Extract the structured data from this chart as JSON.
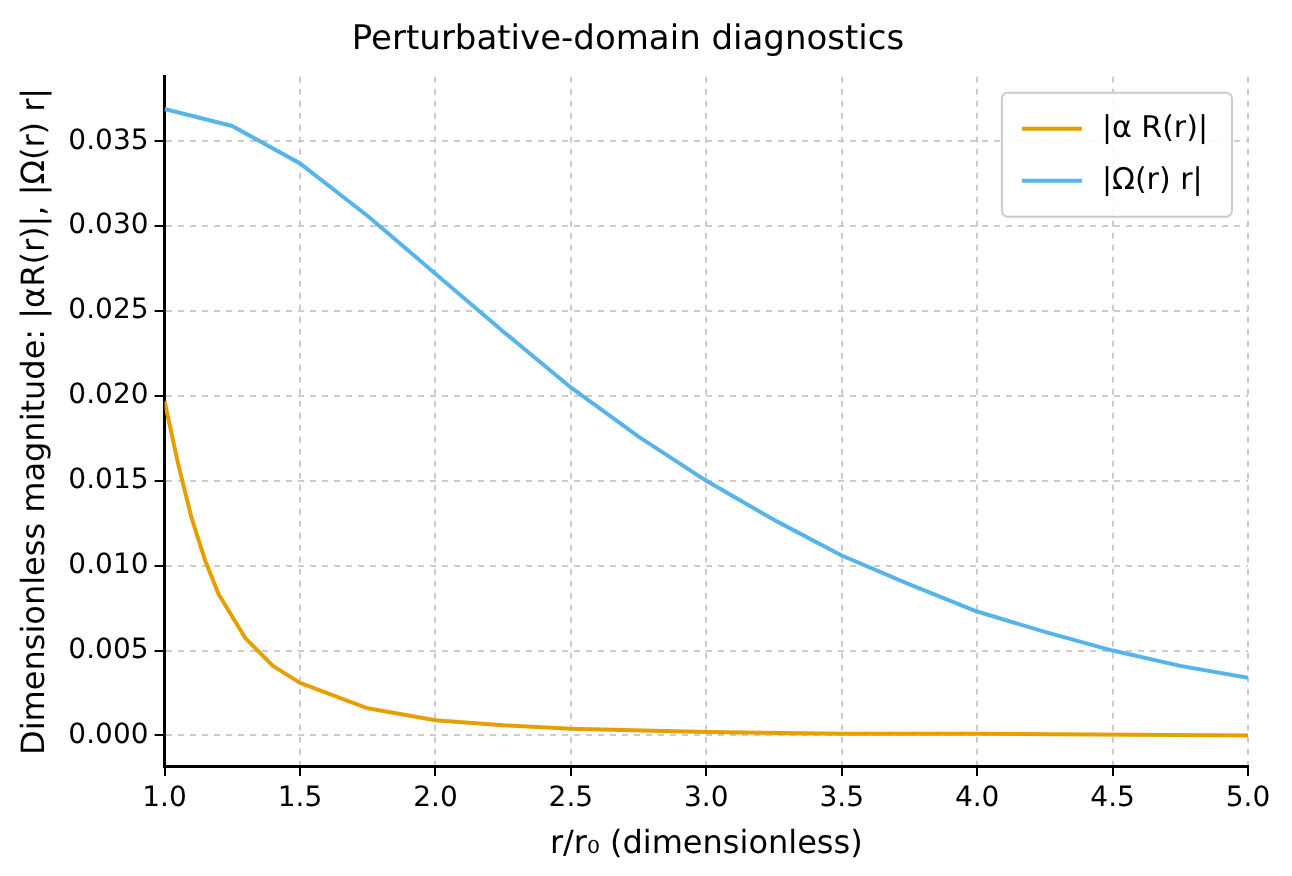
{
  "chart_data": {
    "type": "line",
    "title": "Perturbative-domain diagnostics",
    "xlabel": "r/r₀ (dimensionless)",
    "ylabel": "Dimensionless magnitude: |αR(r)|, |Ω(r) r|",
    "series": [
      {
        "name": "|α R(r)|",
        "color": "#e69f00",
        "x": [
          1.0,
          1.05,
          1.1,
          1.15,
          1.2,
          1.3,
          1.4,
          1.5,
          1.75,
          2.0,
          2.25,
          2.5,
          3.0,
          3.5,
          4.0,
          5.0
        ],
        "values": [
          0.0197,
          0.016,
          0.0128,
          0.0103,
          0.0083,
          0.0057,
          0.0041,
          0.0031,
          0.0016,
          0.0009,
          0.0006,
          0.0004,
          0.0002,
          0.0001,
          0.0001,
          0.0
        ]
      },
      {
        "name": "|Ω(r) r|",
        "color": "#56b4e9",
        "x": [
          1.0,
          1.25,
          1.5,
          1.75,
          2.0,
          2.25,
          2.5,
          2.75,
          3.0,
          3.25,
          3.5,
          3.75,
          4.0,
          4.25,
          4.5,
          4.75,
          5.0
        ],
        "values": [
          0.0369,
          0.0359,
          0.0337,
          0.0306,
          0.0272,
          0.0238,
          0.0205,
          0.0176,
          0.015,
          0.0127,
          0.0106,
          0.0089,
          0.0073,
          0.0061,
          0.005,
          0.0041,
          0.0034
        ]
      }
    ],
    "xlim": [
      1.0,
      5.0
    ],
    "xticks": [
      {
        "value": 1,
        "label": "1.0"
      },
      {
        "value": 1.5,
        "label": "1.5"
      },
      {
        "value": 2,
        "label": "2.0"
      },
      {
        "value": 2.5,
        "label": "2.5"
      },
      {
        "value": 3,
        "label": "3.0"
      },
      {
        "value": 3.5,
        "label": "3.5"
      },
      {
        "value": 4,
        "label": "4.0"
      },
      {
        "value": 4.5,
        "label": "4.5"
      },
      {
        "value": 5,
        "label": "5.0"
      }
    ],
    "ylim": [
      -0.0018,
      0.0388
    ],
    "yticks": [
      {
        "value": 0,
        "label": "0.000"
      },
      {
        "value": 0.005,
        "label": "0.005"
      },
      {
        "value": 0.01,
        "label": "0.010"
      },
      {
        "value": 0.015,
        "label": "0.015"
      },
      {
        "value": 0.02,
        "label": "0.020"
      },
      {
        "value": 0.025,
        "label": "0.025"
      },
      {
        "value": 0.03,
        "label": "0.030"
      },
      {
        "value": 0.035,
        "label": "0.035"
      }
    ],
    "grid": true,
    "legend": "top right",
    "marker": "none",
    "line_style": "solid"
  }
}
